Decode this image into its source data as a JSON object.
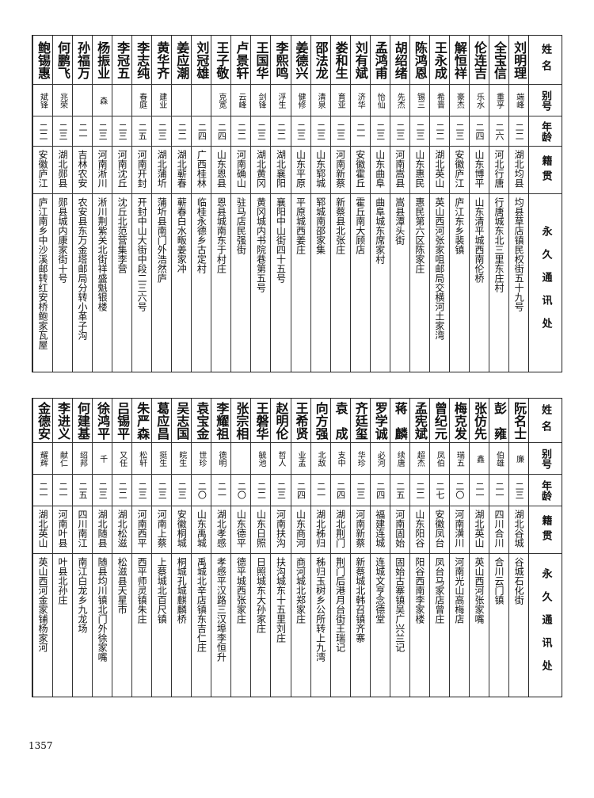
{
  "headers": {
    "name": "姓名",
    "alias": "别号",
    "age": "年龄",
    "origin": "籍贯",
    "address": "永久通讯处"
  },
  "top_table": [
    [
      "刘明理",
      "端峰",
      "二二",
      "湖北均县",
      "均县草店镇民权街五十九号"
    ],
    [
      "全宝信",
      "重孚",
      "二六",
      "河北行唐",
      "行唐城东北三里东庄村"
    ],
    [
      "伦连吉",
      "乐水",
      "二四",
      "山东博平",
      "山东清平城西南伦桥"
    ],
    [
      "解恒祥",
      "豪杰",
      "二三",
      "安徽庐江",
      "庐江东乡裴镇"
    ],
    [
      "王永成",
      "希晋",
      "二二",
      "湖北英山",
      "英山西河张家咀邮局交横河土家湾"
    ],
    [
      "陈鸿恩",
      "锡三",
      "二三",
      "山东惠民",
      "惠民第六区陈家庄"
    ],
    [
      "胡绍绪",
      "先杰",
      "二三",
      "河南嵩县",
      "嵩县潭头街"
    ],
    [
      "孟鸿甫",
      "怡仙",
      "二三",
      "山东曲阜",
      "曲阜城东席家村"
    ],
    [
      "刘有斌",
      "济华",
      "二一",
      "安徽霍丘",
      "霍丘南大顾店"
    ],
    [
      "娄和生",
      "育亚",
      "二三",
      "河南新蔡",
      "新蔡县北张庄"
    ],
    [
      "邵法龙",
      "清泉",
      "二三",
      "山东郓城",
      "郓城南邵家集"
    ],
    [
      "姜德兴",
      "健修",
      "二三",
      "山东平原",
      "平原城西姜庄"
    ],
    [
      "李熙鸣",
      "浮生",
      "二二",
      "湖北襄阳",
      "襄阳中山街四十五号"
    ],
    [
      "王国华",
      "剑锋",
      "二三",
      "湖北黄冈",
      "黄冈城内书院巷第五号"
    ],
    [
      "卢景轩",
      "云峰",
      "二二",
      "河南确山",
      "驻马店民强街"
    ],
    [
      "王子敬",
      "克宽",
      "二四",
      "山东恩县",
      "恩县城南东于村庄"
    ],
    [
      "刘冠雄",
      "",
      "二四",
      "广西桂林",
      "临桂永德乡古定村"
    ],
    [
      "姜应潮",
      "",
      "二二",
      "湖北蕲春",
      "蕲春白水畈姜家冲"
    ],
    [
      "黄华齐",
      "建业",
      "二三",
      "湖北蒲圻",
      "蒲圻县南门外浩然庐"
    ],
    [
      "李志纯",
      "春庭",
      "二五",
      "河南开封",
      "开封中山大街中段二三六号"
    ],
    [
      "李冠五",
      "",
      "二三",
      "河南沈丘",
      "沈丘北范营集李营"
    ],
    [
      "杨振业",
      "森",
      "二三",
      "河南淅川",
      "淅川荆紫关北街祥盛魁银楼"
    ],
    [
      "孙福万",
      "",
      "二一",
      "吉林农安",
      "农安县东万金塔邮局分转小革子沟"
    ],
    [
      "何鹏飞",
      "兆荣",
      "二三",
      "湖北郧县",
      "郧县城内康家街十号"
    ],
    [
      "鲍锡惠",
      "斌锋",
      "二二",
      "安徽庐江",
      "庐江南乡中沙溪邮转红安桥鲍家瓦屋"
    ]
  ],
  "bottom_table": [
    [
      "阮名士",
      "廉",
      "二三",
      "湖北谷城",
      "谷城石化街"
    ],
    [
      "彭　雍",
      "伯雄",
      "二一",
      "四川合川",
      "合川云门镇"
    ],
    [
      "张仿先",
      "鑫",
      "二一",
      "湖北英山",
      "英山西河张家嘴"
    ],
    [
      "梅克发",
      "瑞五",
      "二〇",
      "河南潢川",
      "河南光山高梅店"
    ],
    [
      "曾纪元",
      "凤伯",
      "二七",
      "安徽凤台",
      "凤台马家店曾庄"
    ],
    [
      "孟宪斌",
      "超杰",
      "二二",
      "山东阳谷",
      "阳谷西南李家楼"
    ],
    [
      "蒋　麟",
      "续唐",
      "二五",
      "河南固始",
      "固始古寨镇吴广兴兰记"
    ],
    [
      "罗学诚",
      "必河",
      "二四",
      "福建连城",
      "连城文亨念德堂"
    ],
    [
      "齐廷玺",
      "华珍",
      "二三",
      "河南新蔡",
      "新蔡城北韩召镇齐寨"
    ],
    [
      "袁　成",
      "支中",
      "二四",
      "湖北荆门",
      "荆门后港月台街王瑞记"
    ],
    [
      "向方强",
      "北敌",
      "二一",
      "湖北秭归",
      "秭归玉树乡公所转上九湾"
    ],
    [
      "王希贤",
      "业孟",
      "二四",
      "山东商河",
      "商河城北郑家庄"
    ],
    [
      "赵明伦",
      "哲人",
      "二三",
      "河南扶沟",
      "扶沟城东十五里刘庄"
    ],
    [
      "王磐华",
      "毓池",
      "二二",
      "山东日照",
      "日照城东大孙家庄"
    ],
    [
      "张宗相",
      "",
      "二〇",
      "山东德平",
      "德平城西张家庄"
    ],
    [
      "李耀祖",
      "德明",
      "二一",
      "湖北孝感",
      "孝感平汉路三汉埠李恒升"
    ],
    [
      "袁宝金",
      "世珍",
      "二〇",
      "山东禹城",
      "禹城北辛店镇东吉仁庄"
    ],
    [
      "吴志国",
      "皖生",
      "二三",
      "安徽桐城",
      "桐城孔城麒麟桥"
    ],
    [
      "葛应昌",
      "挺生",
      "二三",
      "河南上蔡",
      "上蔡城北百尺镇"
    ],
    [
      "朱严森",
      "松轩",
      "二三",
      "河南西平",
      "西平师灵镇朱庄"
    ],
    [
      "吕锡平",
      "又任",
      "二二",
      "湖北松滋",
      "松滋县天星市"
    ],
    [
      "徐鸿平",
      "千",
      "二三",
      "湖北随县",
      "随县均川镇北门外徐家嘴"
    ],
    [
      "何建基",
      "绍邦",
      "二五",
      "四川南江",
      "南江白龙乡九龙场"
    ],
    [
      "李进义",
      "献仁",
      "二一",
      "河南叶县",
      "叶县北孙庄"
    ],
    [
      "金德安",
      "耀辉",
      "二一",
      "湖北英山",
      "英山西河金家铺杨家河"
    ]
  ],
  "page_number": "1357"
}
